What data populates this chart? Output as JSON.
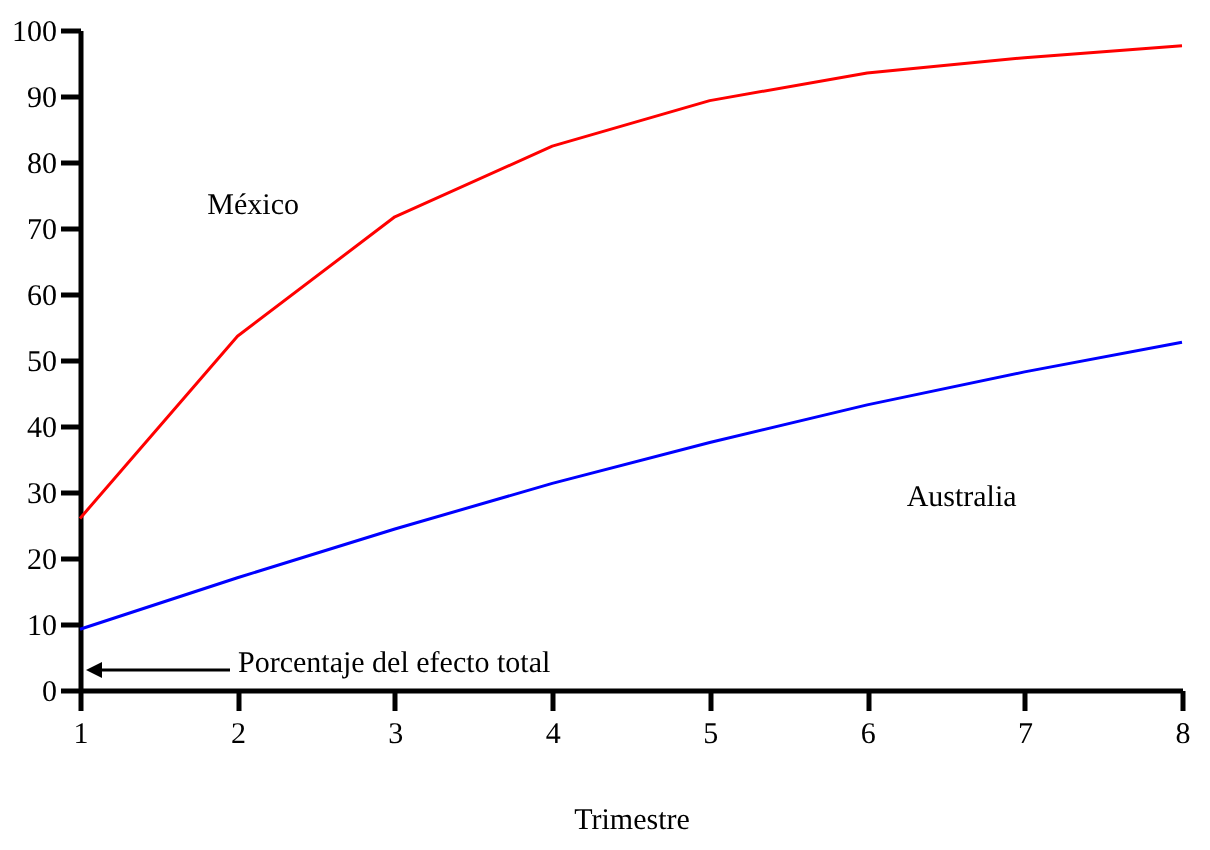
{
  "chart_data": {
    "type": "line",
    "xlabel": "Trimestre",
    "x": [
      1,
      2,
      3,
      4,
      5,
      6,
      7,
      8
    ],
    "series": [
      {
        "name": "México",
        "color": "#ff0000",
        "values": [
          26,
          53.6,
          71.7,
          82.4,
          89.3,
          93.5,
          95.8,
          97.6
        ]
      },
      {
        "name": "Australia",
        "color": "#0000ff",
        "values": [
          9.2,
          17,
          24.4,
          31.3,
          37.5,
          43.2,
          48.2,
          52.7
        ]
      }
    ],
    "xlim": [
      1,
      8
    ],
    "xticks": [
      1,
      2,
      3,
      4,
      5,
      6,
      7,
      8
    ],
    "ylim": [
      0,
      100
    ],
    "yticks": [
      0,
      10,
      20,
      30,
      40,
      50,
      60,
      70,
      80,
      90,
      100
    ],
    "annotations": [
      "Porcentaje del efecto total"
    ],
    "grid": false,
    "legend": false,
    "marker": "none",
    "line_style": "solid"
  }
}
